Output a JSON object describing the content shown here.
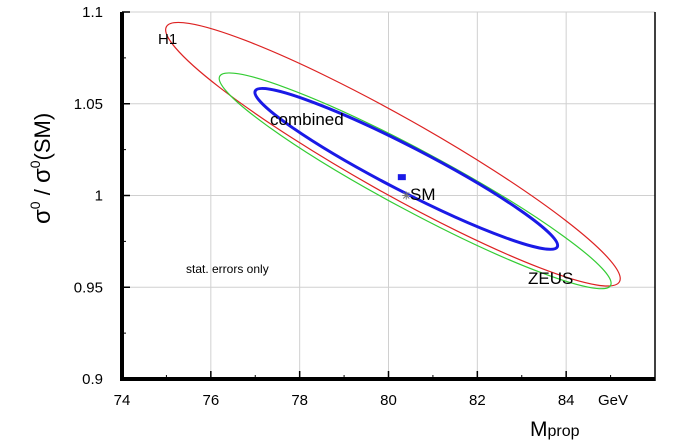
{
  "chart_data": {
    "type": "contour",
    "xlim": [
      74,
      86
    ],
    "ylim": [
      0.9,
      1.1
    ],
    "x_ticks": [
      74,
      76,
      78,
      80,
      82,
      84
    ],
    "x_tick_labels": [
      "74",
      "76",
      "78",
      "80",
      "82",
      "84"
    ],
    "x_unit": "GeV",
    "y_ticks": [
      0.9,
      0.95,
      1.0,
      1.05,
      1.1
    ],
    "y_tick_labels": [
      "0.9",
      "0.95",
      "1",
      "1.05",
      "1.1"
    ],
    "xlabel": "M",
    "xlabel_sub": "prop",
    "ylabel_sigma": "σ",
    "ylabel_sup": "0",
    "ylabel_sm": "(SM)",
    "grid": true,
    "series": [
      {
        "name": "H1",
        "color": "#dd2222",
        "center": [
          80.0,
          1.0
        ],
        "extreme_points": [
          [
            75.0,
            1.092
          ],
          [
            85.2,
            0.953
          ]
        ]
      },
      {
        "name": "ZEUS",
        "color": "#33cc33",
        "center": [
          80.3,
          1.005
        ],
        "extreme_points": [
          [
            76.2,
            1.065
          ],
          [
            85.0,
            0.951
          ]
        ]
      },
      {
        "name": "combined",
        "color": "#1a1ae6",
        "center": [
          80.3,
          1.01
        ],
        "extreme_points": [
          [
            77.0,
            1.057
          ],
          [
            83.8,
            0.972
          ]
        ]
      }
    ],
    "points": [
      {
        "name": "combined fit",
        "x": 80.3,
        "y": 1.01,
        "color": "#1a1ae6",
        "marker": "square"
      },
      {
        "name": "SM",
        "x": 80.4,
        "y": 1.0,
        "color": "#777777",
        "marker": "star"
      }
    ],
    "annotations": {
      "h1": "H1",
      "combined": "combined",
      "sm": "SM",
      "zeus": "ZEUS",
      "note": "stat. errors only"
    }
  }
}
